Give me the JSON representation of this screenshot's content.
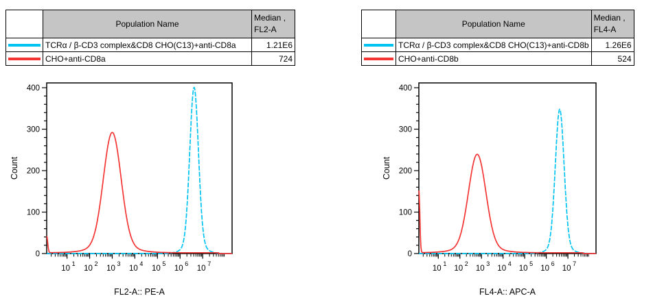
{
  "colors": {
    "cyan": "#00C3F2",
    "red": "#F43333",
    "table_header_bg": "#C5C5C5",
    "axis": "#000000"
  },
  "panels": [
    {
      "table": {
        "header": {
          "population": "Population Name",
          "median_line1": "Median ,",
          "median_line2": "FL2-A"
        },
        "rows": [
          {
            "color": "cyan",
            "name": "TCRα / β-CD3 complex&CD8 CHO(C13)+anti-CD8a",
            "median": "1.21E6"
          },
          {
            "color": "red",
            "name": "CHO+anti-CD8a",
            "median": "724"
          }
        ]
      },
      "chart_data": {
        "type": "line",
        "subtype": "flow-histogram",
        "xlabel": "FL2-A:: PE-A",
        "ylabel": "Count",
        "x_scale": "log10",
        "x_decade_ticks": [
          1,
          2,
          3,
          4,
          5,
          6,
          7
        ],
        "x_range_log10": [
          0.1,
          8.3
        ],
        "ylim": [
          0,
          400
        ],
        "y_tick_step": 100,
        "y_minor_step": 20,
        "grid": false,
        "series": [
          {
            "name": "TCRα / β-CD3 complex&CD8 CHO(C13)+anti-CD8a",
            "color": "cyan",
            "peak_log10_x": 6.62,
            "peak_count": 380,
            "sigma_log10": 0.19,
            "edge_spike_count": 0,
            "baseline_count": 0
          },
          {
            "name": "CHO+anti-CD8a",
            "color": "red",
            "peak_log10_x": 3.0,
            "peak_count": 275,
            "sigma_log10": 0.39,
            "edge_spike_count": 40,
            "baseline_count": 2
          }
        ]
      }
    },
    {
      "table": {
        "header": {
          "population": "Population Name",
          "median_line1": "Median ,",
          "median_line2": "FL4-A"
        },
        "rows": [
          {
            "color": "cyan",
            "name": "TCRα / β-CD3 complex&CD8 CHO(C13)+anti-CD8b",
            "median": "1.26E6"
          },
          {
            "color": "red",
            "name": "CHO+anti-CD8b",
            "median": "524"
          }
        ]
      },
      "chart_data": {
        "type": "line",
        "subtype": "flow-histogram",
        "xlabel": "FL4-A:: APC-A",
        "ylabel": "Count",
        "x_scale": "log10",
        "x_decade_ticks": [
          1,
          2,
          3,
          4,
          5,
          6,
          7
        ],
        "x_range_log10": [
          0.1,
          8.3
        ],
        "ylim": [
          0,
          400
        ],
        "y_tick_step": 100,
        "y_minor_step": 20,
        "grid": false,
        "series": [
          {
            "name": "TCRα / β-CD3 complex&CD8 CHO(C13)+anti-CD8b",
            "color": "cyan",
            "peak_log10_x": 6.62,
            "peak_count": 330,
            "sigma_log10": 0.2,
            "edge_spike_count": 0,
            "baseline_count": 0
          },
          {
            "name": "CHO+anti-CD8b",
            "color": "red",
            "peak_log10_x": 2.8,
            "peak_count": 225,
            "sigma_log10": 0.4,
            "edge_spike_count": 150,
            "baseline_count": 2
          }
        ]
      }
    }
  ]
}
